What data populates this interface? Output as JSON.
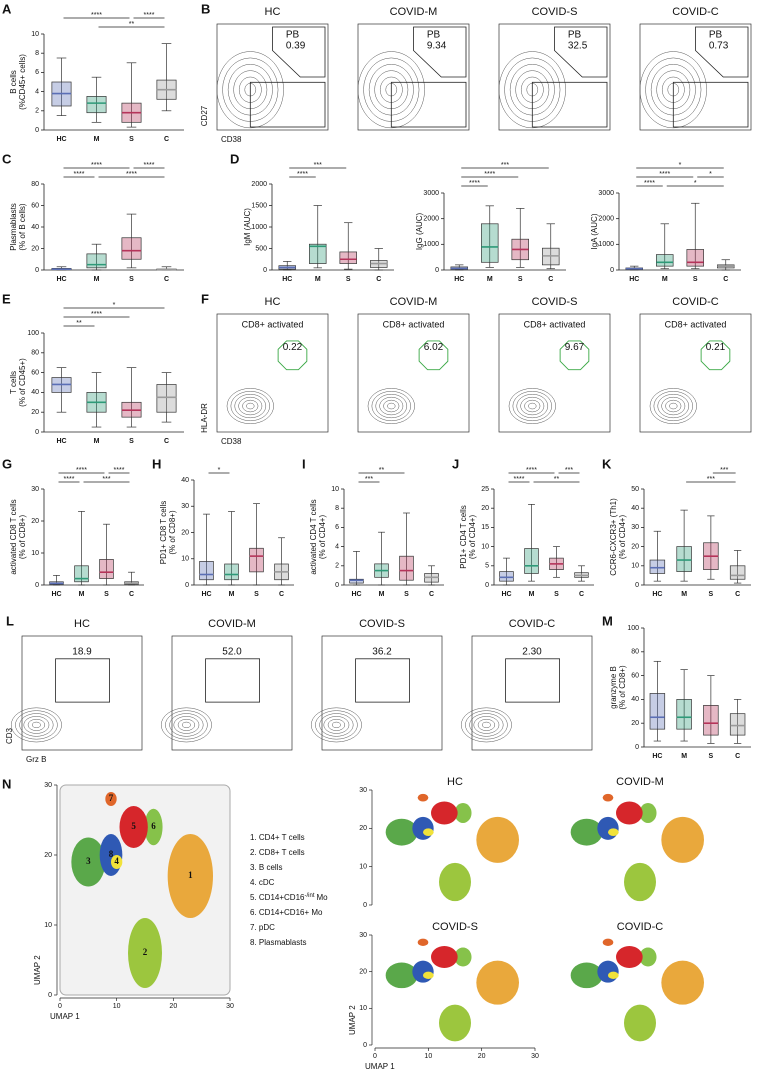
{
  "boxplots": [
    {
      "letter": "A",
      "ylabel": [
        "B cells",
        "(%CD45+ cells)"
      ],
      "ylim": [
        0,
        10
      ],
      "yticks": [
        0,
        2,
        4,
        6,
        8,
        10
      ],
      "categories": [
        "HC",
        "M",
        "S",
        "C"
      ],
      "colors": [
        "#5b6fb5",
        "#2e9a78",
        "#b5345a",
        "#9a9a9a"
      ],
      "stats": [
        [
          1.5,
          2.5,
          3.8,
          5,
          7.5
        ],
        [
          0.8,
          1.8,
          2.8,
          3.5,
          5.5
        ],
        [
          0.3,
          0.8,
          1.8,
          2.8,
          7
        ],
        [
          2,
          3.2,
          4.2,
          5.2,
          9
        ]
      ],
      "significance": [
        {
          "label": "****",
          "from": 0,
          "to": 2
        },
        {
          "label": "****",
          "from": 2,
          "to": 3
        },
        {
          "label": "**",
          "from": 1,
          "to": 3
        }
      ]
    },
    {
      "letter": "C",
      "ylabel": [
        "Plasmablasts",
        "(% of B cells)"
      ],
      "ylim": [
        0,
        80
      ],
      "yticks": [
        0,
        20,
        40,
        60,
        80
      ],
      "categories": [
        "HC",
        "M",
        "S",
        "C"
      ],
      "colors": [
        "#5b6fb5",
        "#2e9a78",
        "#b5345a",
        "#9a9a9a"
      ],
      "stats": [
        [
          0,
          0.3,
          0.8,
          1.5,
          3
        ],
        [
          0,
          2,
          5,
          15,
          24
        ],
        [
          2,
          10,
          18,
          30,
          52
        ],
        [
          0,
          0.2,
          0.5,
          1,
          3
        ]
      ],
      "significance": [
        {
          "label": "****",
          "from": 0,
          "to": 2
        },
        {
          "label": "****",
          "from": 2,
          "to": 3
        },
        {
          "label": "****",
          "from": 0,
          "to": 1
        },
        {
          "label": "****",
          "from": 1,
          "to": 3
        }
      ]
    },
    {
      "letter": "D",
      "ylabel": [
        "IgM (AUC)"
      ],
      "ylim": [
        0,
        2000
      ],
      "yticks": [
        0,
        500,
        1000,
        1500,
        2000
      ],
      "categories": [
        "HC",
        "M",
        "S",
        "C"
      ],
      "colors": [
        "#5b6fb5",
        "#2e9a78",
        "#b5345a",
        "#9a9a9a"
      ],
      "stats": [
        [
          0,
          20,
          60,
          100,
          200
        ],
        [
          50,
          150,
          550,
          600,
          1500
        ],
        [
          20,
          150,
          250,
          420,
          1100
        ],
        [
          0,
          60,
          150,
          220,
          500
        ]
      ],
      "significance": [
        {
          "label": "***",
          "from": 0,
          "to": 2
        },
        {
          "label": "****",
          "from": 0,
          "to": 1
        }
      ]
    },
    {
      "ylabel": [
        "IgG (AUC)"
      ],
      "ylim": [
        0,
        3000
      ],
      "yticks": [
        0,
        1000,
        2000,
        3000
      ],
      "categories": [
        "HC",
        "M",
        "S",
        "C"
      ],
      "colors": [
        "#5b6fb5",
        "#2e9a78",
        "#b5345a",
        "#9a9a9a"
      ],
      "stats": [
        [
          0,
          30,
          60,
          120,
          200
        ],
        [
          100,
          300,
          900,
          1800,
          2500
        ],
        [
          100,
          400,
          800,
          1200,
          2400
        ],
        [
          50,
          200,
          550,
          850,
          1800
        ]
      ],
      "significance": [
        {
          "label": "***",
          "from": 0,
          "to": 3
        },
        {
          "label": "****",
          "from": 0,
          "to": 2
        },
        {
          "label": "****",
          "from": 0,
          "to": 1
        }
      ]
    },
    {
      "ylabel": [
        "IgA (AUC)"
      ],
      "ylim": [
        0,
        3000
      ],
      "yticks": [
        0,
        1000,
        2000,
        3000
      ],
      "categories": [
        "HC",
        "M",
        "S",
        "C"
      ],
      "colors": [
        "#5b6fb5",
        "#2e9a78",
        "#b5345a",
        "#9a9a9a"
      ],
      "stats": [
        [
          0,
          20,
          50,
          80,
          150
        ],
        [
          50,
          150,
          300,
          600,
          1800
        ],
        [
          50,
          150,
          300,
          800,
          2600
        ],
        [
          0,
          80,
          150,
          200,
          400
        ]
      ],
      "significance": [
        {
          "label": "*",
          "from": 0,
          "to": 3
        },
        {
          "label": "****",
          "from": 0,
          "to": 2
        },
        {
          "label": "****",
          "from": 0,
          "to": 1
        },
        {
          "label": "*",
          "from": 1,
          "to": 3
        },
        {
          "label": "*",
          "from": 2,
          "to": 3
        }
      ]
    },
    {
      "letter": "E",
      "ylabel": [
        "T cells",
        "(% of CD45+)"
      ],
      "ylim": [
        0,
        100
      ],
      "yticks": [
        0,
        20,
        40,
        60,
        80,
        100
      ],
      "categories": [
        "HC",
        "M",
        "S",
        "C"
      ],
      "colors": [
        "#5b6fb5",
        "#2e9a78",
        "#b5345a",
        "#9a9a9a"
      ],
      "stats": [
        [
          20,
          40,
          48,
          55,
          65
        ],
        [
          5,
          20,
          30,
          40,
          60
        ],
        [
          5,
          15,
          22,
          30,
          65
        ],
        [
          10,
          20,
          35,
          48,
          60
        ]
      ],
      "significance": [
        {
          "label": "*",
          "from": 0,
          "to": 3
        },
        {
          "label": "****",
          "from": 0,
          "to": 2
        },
        {
          "label": "**",
          "from": 0,
          "to": 1
        }
      ]
    },
    {
      "letter": "G",
      "ylabel": [
        "activated CD8 T cells",
        "(% of CD8+)"
      ],
      "ylim": [
        0,
        30
      ],
      "yticks": [
        0,
        10,
        20,
        30
      ],
      "categories": [
        "HC",
        "M",
        "S",
        "C"
      ],
      "colors": [
        "#5b6fb5",
        "#2e9a78",
        "#b5345a",
        "#9a9a9a"
      ],
      "stats": [
        [
          0,
          0.2,
          0.5,
          1,
          3
        ],
        [
          0,
          1,
          2,
          6,
          23
        ],
        [
          0,
          2,
          4,
          8,
          19
        ],
        [
          0,
          0.2,
          0.5,
          1,
          4
        ]
      ],
      "significance": [
        {
          "label": "****",
          "from": 0,
          "to": 2
        },
        {
          "label": "****",
          "from": 2,
          "to": 3
        },
        {
          "label": "****",
          "from": 0,
          "to": 1
        },
        {
          "label": "***",
          "from": 1,
          "to": 3
        }
      ]
    },
    {
      "letter": "H",
      "ylabel": [
        "PD1+ CD8 T cells",
        "(% of CD8+)"
      ],
      "ylim": [
        0,
        40
      ],
      "yticks": [
        0,
        10,
        20,
        30,
        40
      ],
      "categories": [
        "HC",
        "M",
        "S",
        "C"
      ],
      "colors": [
        "#5b6fb5",
        "#2e9a78",
        "#b5345a",
        "#9a9a9a"
      ],
      "stats": [
        [
          0,
          2,
          4,
          9,
          27
        ],
        [
          0,
          2,
          4,
          8,
          28
        ],
        [
          0,
          5,
          11,
          14,
          31
        ],
        [
          0,
          2,
          5,
          8,
          18
        ]
      ],
      "significance": [
        {
          "label": "*",
          "from": 0,
          "to": 1
        }
      ]
    },
    {
      "letter": "I",
      "ylabel": [
        "activated CD4 T cells",
        "(% of CD4+)"
      ],
      "ylim": [
        0,
        10
      ],
      "yticks": [
        0,
        2,
        4,
        6,
        8,
        10
      ],
      "categories": [
        "HC",
        "M",
        "S",
        "C"
      ],
      "colors": [
        "#5b6fb5",
        "#2e9a78",
        "#b5345a",
        "#9a9a9a"
      ],
      "stats": [
        [
          0,
          0.2,
          0.5,
          0.6,
          3.5
        ],
        [
          0,
          0.8,
          1.5,
          2.2,
          5.5
        ],
        [
          0,
          0.5,
          1.5,
          3,
          7.5
        ],
        [
          0,
          0.3,
          0.8,
          1.2,
          2
        ]
      ],
      "significance": [
        {
          "label": "**",
          "from": 0,
          "to": 2
        },
        {
          "label": "***",
          "from": 0,
          "to": 1
        }
      ]
    },
    {
      "letter": "J",
      "ylabel": [
        "PD1+ CD4 T cells",
        "(% of CD4+)"
      ],
      "ylim": [
        0,
        25
      ],
      "yticks": [
        0,
        5,
        10,
        15,
        20,
        25
      ],
      "categories": [
        "HC",
        "M",
        "S",
        "C"
      ],
      "colors": [
        "#5b6fb5",
        "#2e9a78",
        "#b5345a",
        "#9a9a9a"
      ],
      "stats": [
        [
          0,
          1,
          2,
          3.5,
          7
        ],
        [
          1,
          3,
          5,
          9.5,
          21
        ],
        [
          2,
          4,
          5.5,
          7,
          10
        ],
        [
          1,
          2,
          2.5,
          3.2,
          5
        ]
      ],
      "significance": [
        {
          "label": "****",
          "from": 0,
          "to": 2
        },
        {
          "label": "***",
          "from": 2,
          "to": 3
        },
        {
          "label": "****",
          "from": 0,
          "to": 1
        },
        {
          "label": "**",
          "from": 1,
          "to": 3
        }
      ]
    },
    {
      "letter": "K",
      "ylabel": [
        "CCR6-CXCR3+ (Th1)",
        "(% of CD4+)"
      ],
      "ylim": [
        0,
        50
      ],
      "yticks": [
        0,
        10,
        20,
        30,
        40,
        50
      ],
      "categories": [
        "HC",
        "M",
        "S",
        "C"
      ],
      "colors": [
        "#5b6fb5",
        "#2e9a78",
        "#b5345a",
        "#9a9a9a"
      ],
      "stats": [
        [
          2,
          6,
          9,
          13,
          28
        ],
        [
          2,
          7,
          13,
          20,
          39
        ],
        [
          3,
          8,
          15,
          22,
          36
        ],
        [
          1,
          3,
          5,
          10,
          18
        ]
      ],
      "significance": [
        {
          "label": "***",
          "from": 2,
          "to": 3
        },
        {
          "label": "***",
          "from": 1,
          "to": 3
        }
      ]
    },
    {
      "letter": "M",
      "ylabel": [
        "granzyme B",
        "(% of CD8+)"
      ],
      "ylim": [
        0,
        100
      ],
      "yticks": [
        0,
        20,
        40,
        60,
        80,
        100
      ],
      "categories": [
        "HC",
        "M",
        "S",
        "C"
      ],
      "colors": [
        "#5b6fb5",
        "#2e9a78",
        "#b5345a",
        "#9a9a9a"
      ],
      "stats": [
        [
          5,
          15,
          25,
          45,
          72
        ],
        [
          5,
          15,
          25,
          40,
          65
        ],
        [
          3,
          10,
          20,
          35,
          60
        ],
        [
          3,
          10,
          18,
          28,
          40
        ]
      ],
      "significance": []
    }
  ],
  "flow": [
    {
      "letter": "B",
      "groups": [
        "HC",
        "COVID-M",
        "COVID-S",
        "COVID-C"
      ],
      "gate": "PB",
      "values": [
        0.39,
        9.34,
        32.5,
        0.73
      ],
      "value_labels": [
        "0.39",
        "9.34",
        "32.5",
        "0.73"
      ],
      "xlabel": "CD38",
      "ylabel": "CD27"
    },
    {
      "letter": "F",
      "groups": [
        "HC",
        "COVID-M",
        "COVID-S",
        "COVID-C"
      ],
      "gate": "CD8+ activated",
      "gate_color": "#3aa845",
      "values": [
        0.22,
        6.02,
        9.67,
        0.21
      ],
      "value_labels": [
        "0.22",
        "6.02",
        "9.67",
        "0.21"
      ],
      "xlabel": "CD38",
      "ylabel": "HLA-DR"
    },
    {
      "letter": "L",
      "groups": [
        "HC",
        "COVID-M",
        "COVID-S",
        "COVID-C"
      ],
      "values": [
        18.9,
        52,
        36.2,
        2.3
      ],
      "value_labels": [
        "18.9",
        "52.0",
        "36.2",
        "2.30"
      ],
      "xlabel": "Grz B",
      "ylabel": "CD3"
    }
  ],
  "umap": {
    "letter": "N",
    "xlabel": "UMAP 1",
    "ylabel": "UMAP 2",
    "xlim": [
      0,
      30
    ],
    "ylim": [
      0,
      30
    ],
    "xticks": [
      0,
      10,
      20,
      30
    ],
    "yticks": [
      0,
      10,
      20,
      30
    ],
    "panels": [
      "HC",
      "COVID-M",
      "COVID-S",
      "COVID-C"
    ],
    "clusters": [
      {
        "number": "1",
        "label": "1. CD4+ T cells",
        "color": "#e9a83c"
      },
      {
        "number": "2",
        "label": "2. CD8+ T cells",
        "color": "#9cc63e"
      },
      {
        "number": "3",
        "label": "3. B cells",
        "color": "#5aa84a"
      },
      {
        "number": "4",
        "label": "4. cDC",
        "color": "#f1e23a"
      },
      {
        "number": "5",
        "label": "5. CD14+CD16",
        "label_sup": "-/int",
        "label_end": "Mo",
        "color": "#d6262b"
      },
      {
        "number": "6",
        "label": "6. CD14+CD16+ Mo",
        "color": "#86c24a"
      },
      {
        "number": "7",
        "label": "7. pDC",
        "color": "#e0662a"
      },
      {
        "number": "8",
        "label": "8. Plasmablasts",
        "color": "#2f59b4"
      }
    ]
  }
}
